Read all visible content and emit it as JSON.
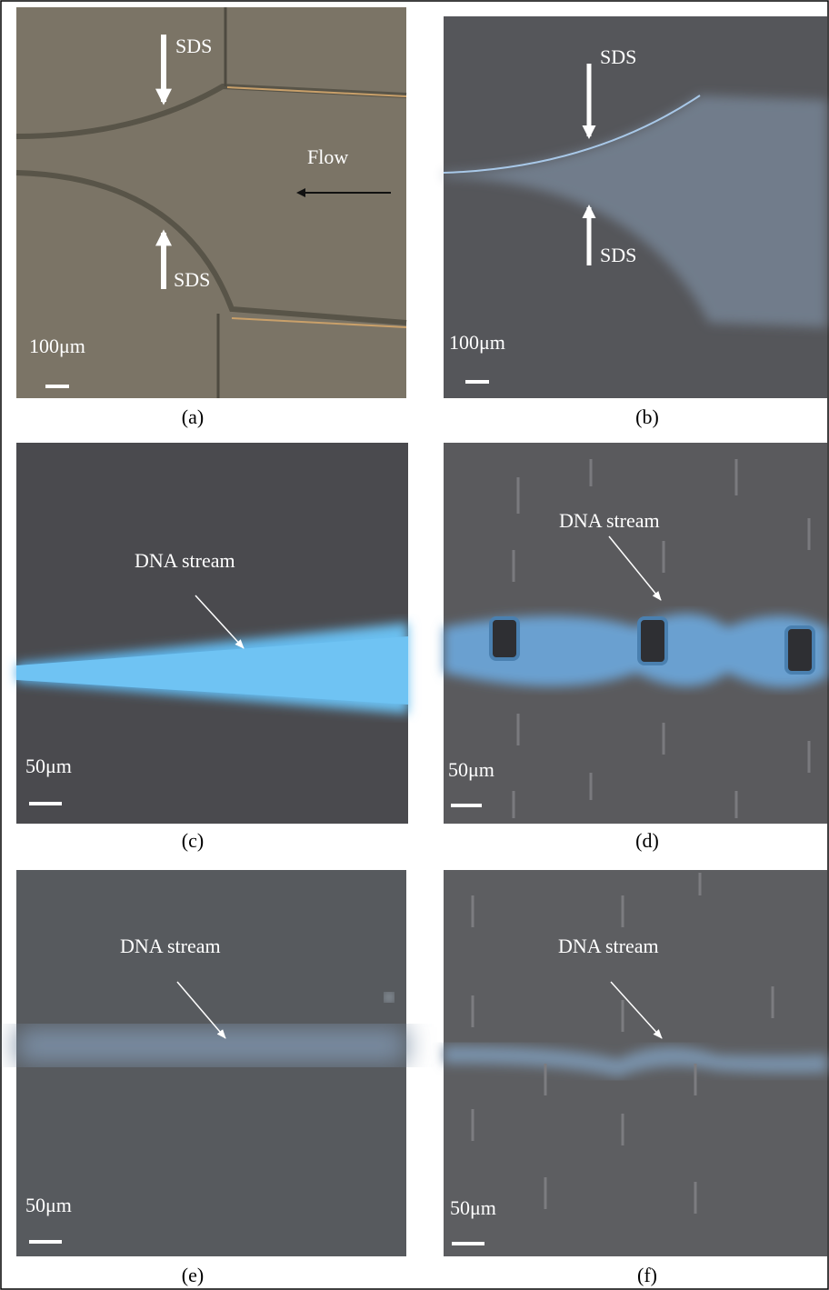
{
  "panels": [
    {
      "caption": "(a)",
      "scale": "100μm",
      "labels": [
        "SDS",
        "Flow",
        "SDS"
      ]
    },
    {
      "caption": "(b)",
      "scale": "100μm",
      "labels": [
        "SDS",
        "SDS"
      ]
    },
    {
      "caption": "(c)",
      "scale": "50μm",
      "labels": [
        "DNA stream"
      ]
    },
    {
      "caption": "(d)",
      "scale": "50μm",
      "labels": [
        "DNA stream"
      ]
    },
    {
      "caption": "(e)",
      "scale": "50μm",
      "labels": [
        "DNA stream"
      ]
    },
    {
      "caption": "(f)",
      "scale": "50μm",
      "labels": [
        "DNA stream"
      ]
    }
  ]
}
